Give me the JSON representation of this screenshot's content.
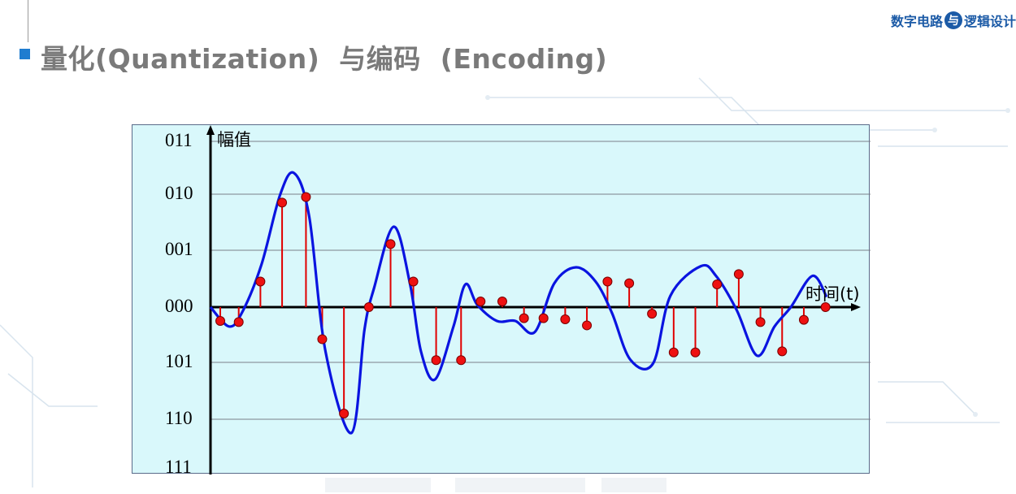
{
  "header": {
    "title": "量化(Quantization)  与编码  (Encoding)",
    "logo_left": "数字电路",
    "logo_mark": "与",
    "logo_right": "逻辑设计"
  },
  "colors": {
    "title_square": "#1f7dd0",
    "chart_bg": "#d9f8fb",
    "signal": "#0a14e0",
    "sample_line": "#e00000",
    "sample_dot": "#ee1111",
    "grid": "#7a7f88",
    "logo": "#1b5aa6"
  },
  "chart_data": {
    "type": "line",
    "ylabel": "幅值",
    "xlabel": "时间(t)",
    "y_levels": [
      {
        "code": "011",
        "value": 3
      },
      {
        "code": "010",
        "value": 2
      },
      {
        "code": "001",
        "value": 1
      },
      {
        "code": "000",
        "value": 0
      },
      {
        "code": "101",
        "value": -1
      },
      {
        "code": "110",
        "value": -2
      },
      {
        "code": "111",
        "value": -3
      }
    ],
    "ylim": [
      -3,
      3
    ],
    "xlim": [
      0,
      29
    ],
    "grid": true,
    "series": [
      {
        "kind": "continuous",
        "x": [
          0,
          0.85,
          1.45,
          2.35,
          3.2,
          3.85,
          4.55,
          5.3,
          6.5,
          7.1,
          7.55,
          8.45,
          9.2,
          9.7,
          10.35,
          11.2,
          11.75,
          12.3,
          13.2,
          14.05,
          14.95,
          15.85,
          16.85,
          17.75,
          18.5,
          19.35,
          20.4,
          21.2,
          22.6,
          23.3,
          24.25,
          25.2,
          26.0,
          26.75,
          27.75,
          28.4
        ],
        "y": [
          0.0,
          -0.35,
          -0.1,
          0.75,
          1.98,
          2.4,
          1.6,
          -0.8,
          -2.28,
          -0.4,
          0.35,
          1.42,
          0.4,
          -0.8,
          -1.3,
          -0.35,
          0.4,
          0.04,
          -0.25,
          -0.25,
          -0.45,
          0.42,
          0.7,
          0.45,
          -0.1,
          -0.95,
          -1.02,
          0.2,
          0.72,
          0.55,
          -0.05,
          -0.88,
          -0.35,
          0.0,
          0.55,
          0.18
        ]
      },
      {
        "kind": "samples",
        "x": [
          0.45,
          1.3,
          2.3,
          3.3,
          4.4,
          5.15,
          6.15,
          7.3,
          8.3,
          9.35,
          10.4,
          11.55,
          12.45,
          13.45,
          14.45,
          15.35,
          16.35,
          17.35,
          18.3,
          19.3,
          20.35,
          21.35,
          22.35,
          23.35,
          24.35,
          25.35,
          26.35,
          27.35,
          28.35
        ],
        "y": [
          -0.25,
          -0.27,
          0.45,
          1.85,
          1.95,
          -0.58,
          -1.9,
          0.0,
          1.11,
          0.45,
          -0.96,
          -0.96,
          0.1,
          0.1,
          -0.2,
          -0.2,
          -0.22,
          -0.33,
          0.45,
          0.42,
          -0.12,
          -0.82,
          -0.82,
          0.4,
          0.58,
          -0.27,
          -0.8,
          -0.23,
          0.0
        ]
      }
    ]
  }
}
